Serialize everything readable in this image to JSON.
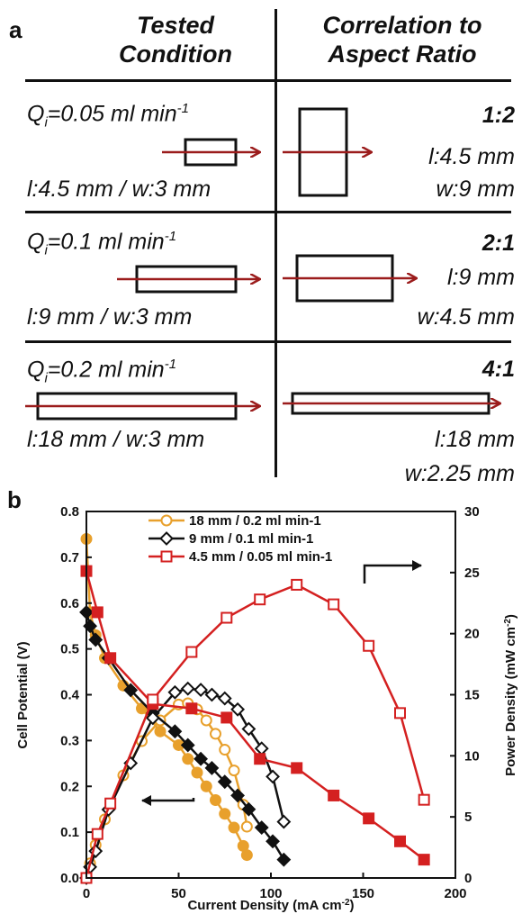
{
  "panel_a": {
    "label": "a",
    "header_left_line1": "Tested",
    "header_left_line2": "Condition",
    "header_right_line1": "Correlation to",
    "header_right_line2": "Aspect Ratio",
    "rows": [
      {
        "q_base": "Q",
        "q_sub": "i",
        "q_text": "=0.05 ml min",
        "q_sup": "-1",
        "dims": "l:4.5 mm / w:3 mm",
        "ratio": "1:2",
        "ratio_l": "l:4.5 mm",
        "ratio_w": "w:9 mm"
      },
      {
        "q_base": "Q",
        "q_sub": "i",
        "q_text": "=0.1 ml min",
        "q_sup": "-1",
        "dims": "l:9 mm / w:3  mm",
        "ratio": "2:1",
        "ratio_l": "l:9 mm",
        "ratio_w": "w:4.5 mm"
      },
      {
        "q_base": "Q",
        "q_sub": "i",
        "q_text": "=0.2 ml min",
        "q_sup": "-1",
        "dims": "l:18 mm / w:3  mm",
        "ratio": "4:1",
        "ratio_l": "l:18 mm",
        "ratio_w": "w:2.25 mm"
      }
    ],
    "arrow_color": "#9b1c1c"
  },
  "panel_b": {
    "label": "b",
    "chart_data": {
      "type": "line",
      "xlabel": "Current Density (mA cm",
      "xlabel_sup": "-2",
      "xlabel_end": ")",
      "ylabel": "Cell Potential (V)",
      "y2label": "Power Density (mW cm",
      "y2label_sup": "-2",
      "y2label_end": ")",
      "xlim": [
        0,
        200
      ],
      "ylim": [
        0,
        0.8
      ],
      "y2lim": [
        0,
        30
      ],
      "xticks": [
        0,
        50,
        100,
        150,
        200
      ],
      "yticks": [
        "0.0",
        "0.1",
        "0.2",
        "0.3",
        "0.4",
        "0.5",
        "0.6",
        "0.7",
        "0.8"
      ],
      "y2ticks": [
        0,
        5,
        10,
        15,
        20,
        25,
        30
      ],
      "legend_position": "top-left",
      "series": [
        {
          "name": "18 mm  / 0.2 ml min-1",
          "color": "#e8a02c",
          "marker_potential": "filled-circle",
          "marker_power": "open-circle",
          "potential": {
            "x": [
              0,
              2,
              5,
              10,
              20,
              30,
              40,
              50,
              55,
              60,
              65,
              70,
              75,
              80,
              85,
              87
            ],
            "y": [
              0.74,
              0.58,
              0.53,
              0.48,
              0.42,
              0.37,
              0.32,
              0.29,
              0.26,
              0.23,
              0.2,
              0.17,
              0.14,
              0.11,
              0.07,
              0.05
            ]
          },
          "power": {
            "x": [
              0,
              2,
              5,
              10,
              20,
              30,
              40,
              50,
              55,
              60,
              65,
              70,
              75,
              80,
              85,
              87
            ],
            "y": [
              0,
              1.2,
              2.7,
              4.8,
              8.4,
              11.2,
              12.9,
              14.2,
              14.3,
              13.8,
              12.9,
              11.8,
              10.5,
              8.8,
              6.0,
              4.2
            ]
          }
        },
        {
          "name": "9 mm    / 0.1 ml min-1",
          "color": "#111111",
          "marker_potential": "filled-diamond",
          "marker_power": "open-diamond",
          "potential": {
            "x": [
              0,
              2,
              5,
              12,
              24,
              36,
              48,
              55,
              62,
              68,
              75,
              82,
              88,
              95,
              101,
              107
            ],
            "y": [
              0.58,
              0.55,
              0.52,
              0.48,
              0.41,
              0.36,
              0.32,
              0.29,
              0.26,
              0.24,
              0.21,
              0.18,
              0.15,
              0.11,
              0.08,
              0.04
            ]
          },
          "power": {
            "x": [
              0,
              2,
              5,
              12,
              24,
              36,
              48,
              55,
              62,
              68,
              75,
              82,
              88,
              95,
              101,
              107
            ],
            "y": [
              0,
              0.9,
              2.2,
              5.6,
              9.4,
              13.1,
              15.2,
              15.5,
              15.4,
              15.0,
              14.7,
              13.8,
              12.2,
              10.6,
              8.3,
              4.6
            ]
          }
        },
        {
          "name": "4.5 mm / 0.05 ml min-1",
          "color": "#d42020",
          "marker_potential": "filled-square",
          "marker_power": "open-square",
          "potential": {
            "x": [
              0,
              6,
              13,
              36,
              57,
              76,
              94,
              114,
              134,
              153,
              170,
              183
            ],
            "y": [
              0.67,
              0.58,
              0.48,
              0.38,
              0.37,
              0.35,
              0.26,
              0.24,
              0.18,
              0.13,
              0.08,
              0.04
            ]
          },
          "power": {
            "x": [
              0,
              6,
              13,
              36,
              57,
              76,
              94,
              114,
              134,
              153,
              170,
              183
            ],
            "y": [
              0,
              3.6,
              6.1,
              14.6,
              18.5,
              21.3,
              22.8,
              24.0,
              22.4,
              19.0,
              13.5,
              6.4
            ]
          }
        }
      ]
    }
  }
}
